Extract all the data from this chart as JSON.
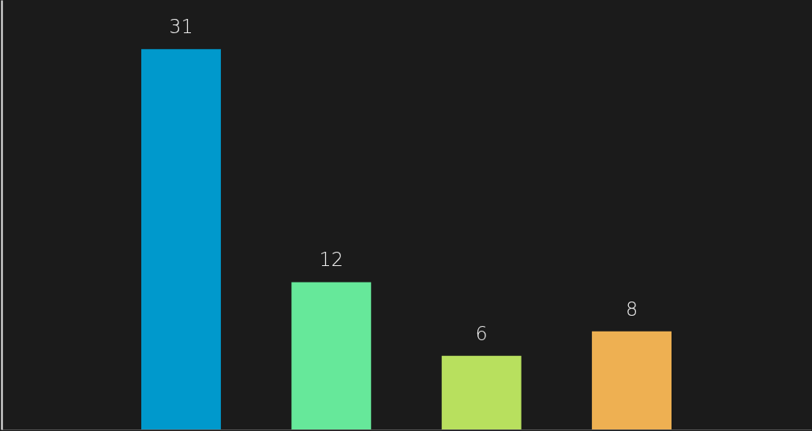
{
  "chart_data": {
    "type": "bar",
    "categories": [
      null,
      null,
      null,
      null
    ],
    "values": [
      31,
      12,
      6,
      8
    ],
    "colors": [
      "#0099cc",
      "#66e89a",
      "#b8e05e",
      "#eeb052"
    ],
    "ylim": [
      0,
      35
    ],
    "data_labels": true
  }
}
